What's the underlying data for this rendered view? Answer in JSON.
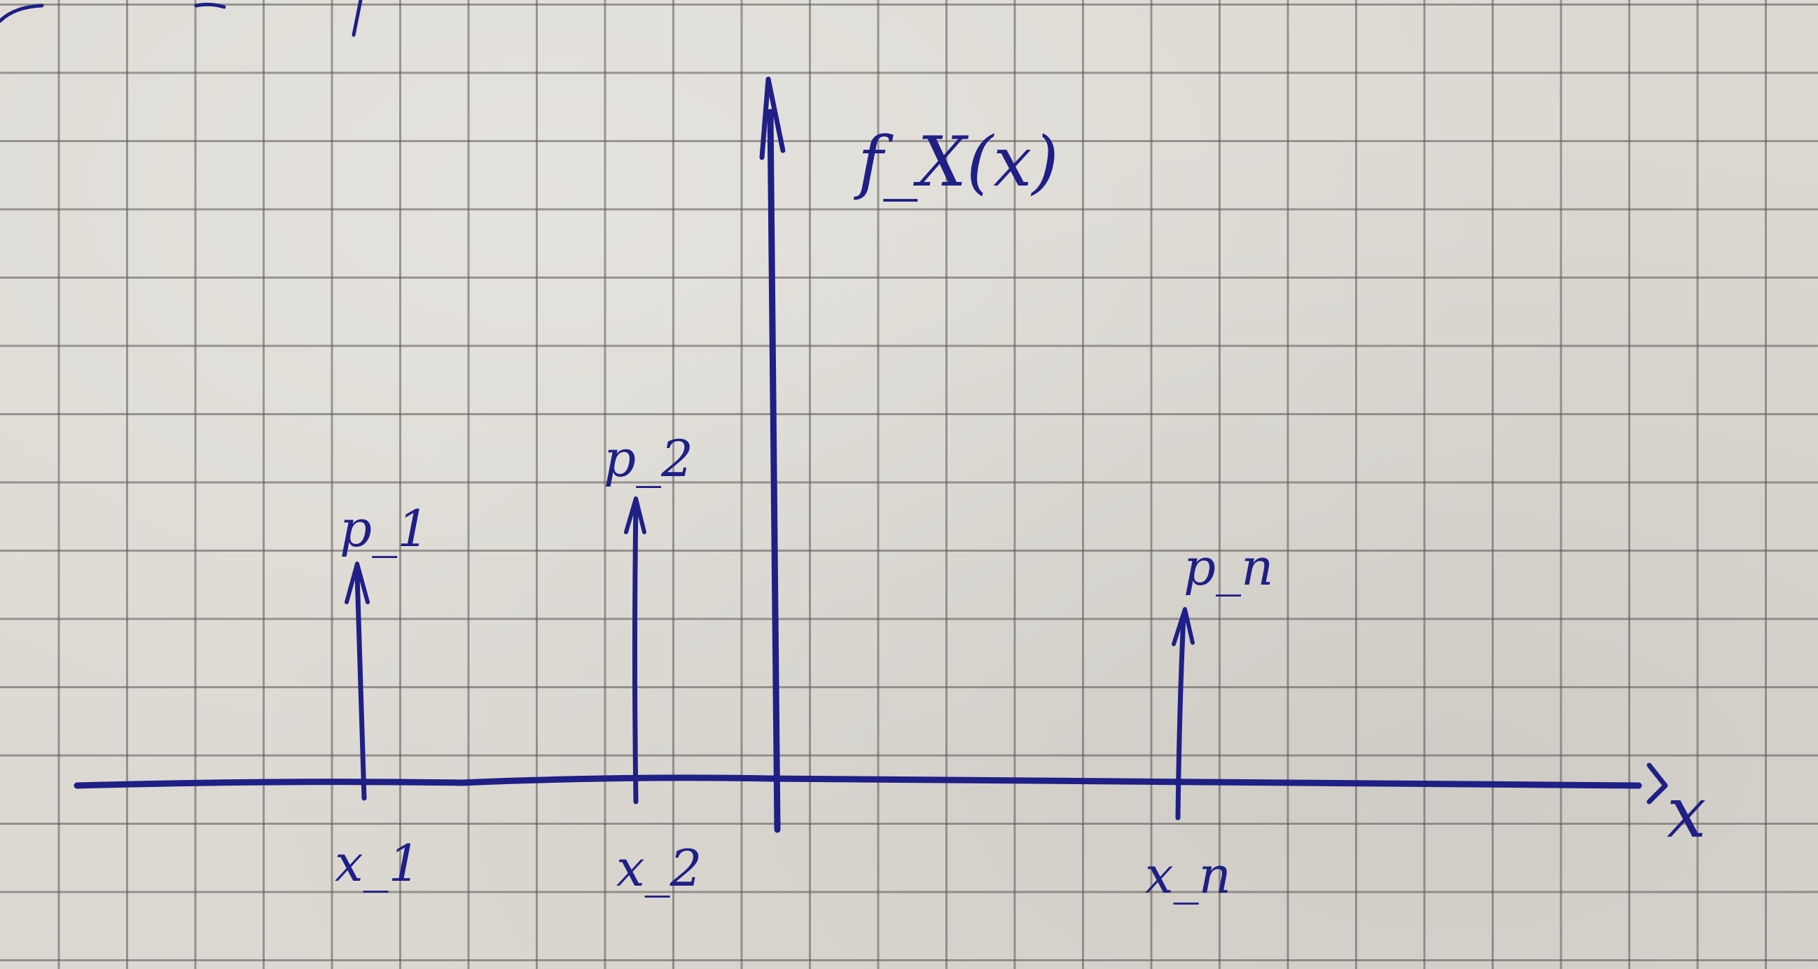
{
  "sketch": {
    "y_axis_label": "f_X(x)",
    "x_axis_label": "x",
    "impulses": [
      {
        "location": "x_1",
        "weight": "p_1"
      },
      {
        "location": "x_2",
        "weight": "p_2"
      },
      {
        "location": "x_n",
        "weight": "p_n"
      }
    ]
  },
  "ink_color": "#1f1f86",
  "paper": "grid-paper"
}
